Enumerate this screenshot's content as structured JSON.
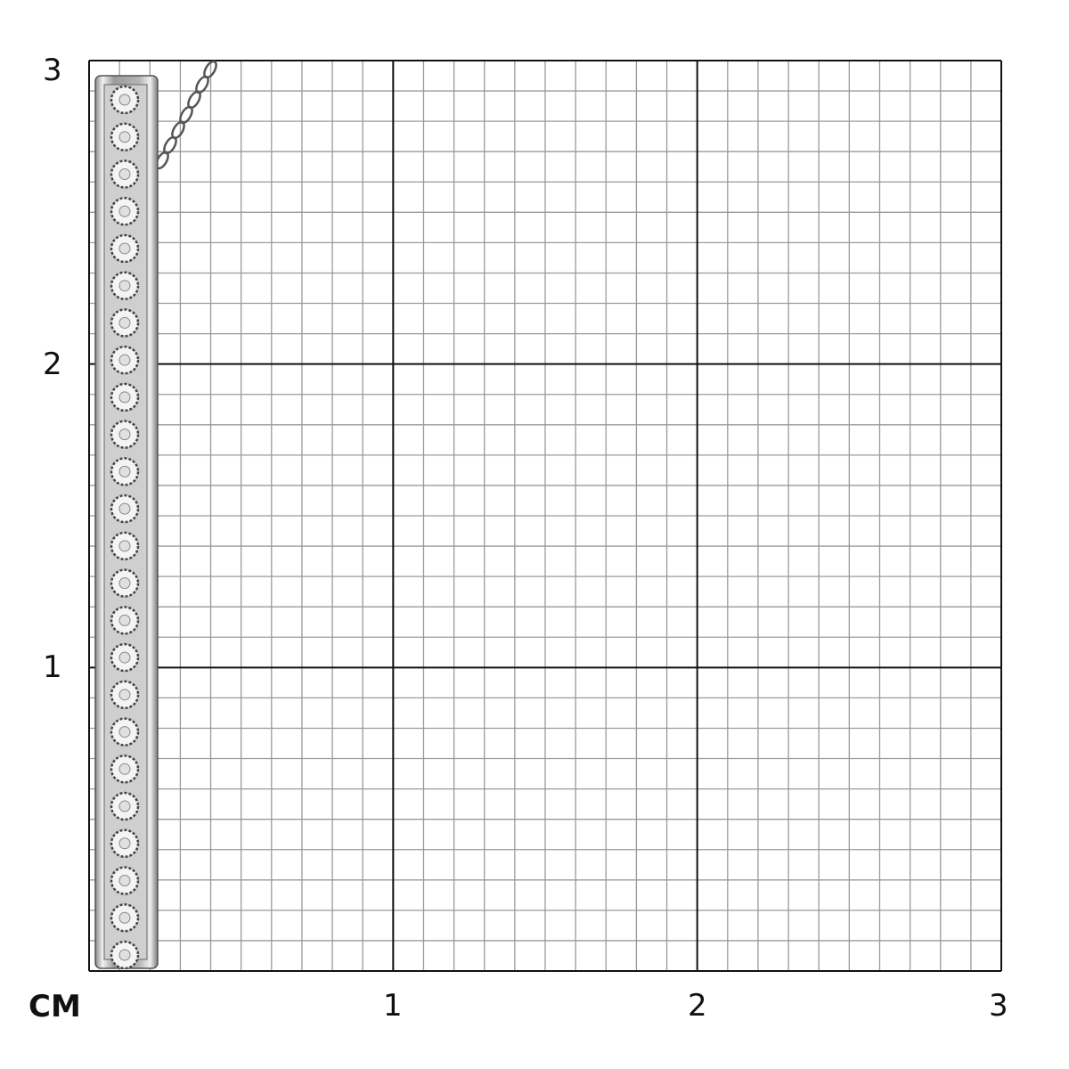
{
  "unit_label": "CM",
  "x_ticks": [
    "1",
    "2",
    "3"
  ],
  "y_ticks": [
    "1",
    "2",
    "3"
  ],
  "grid": {
    "range_cm": 3,
    "minor_divisions_per_cm": 10,
    "major_color": "#111111",
    "minor_color": "#9a9a9a"
  },
  "product": {
    "type": "vertical bar pendant with pavé stones and chain",
    "metal_color": "#c8c8c8",
    "stone_count": 24
  }
}
